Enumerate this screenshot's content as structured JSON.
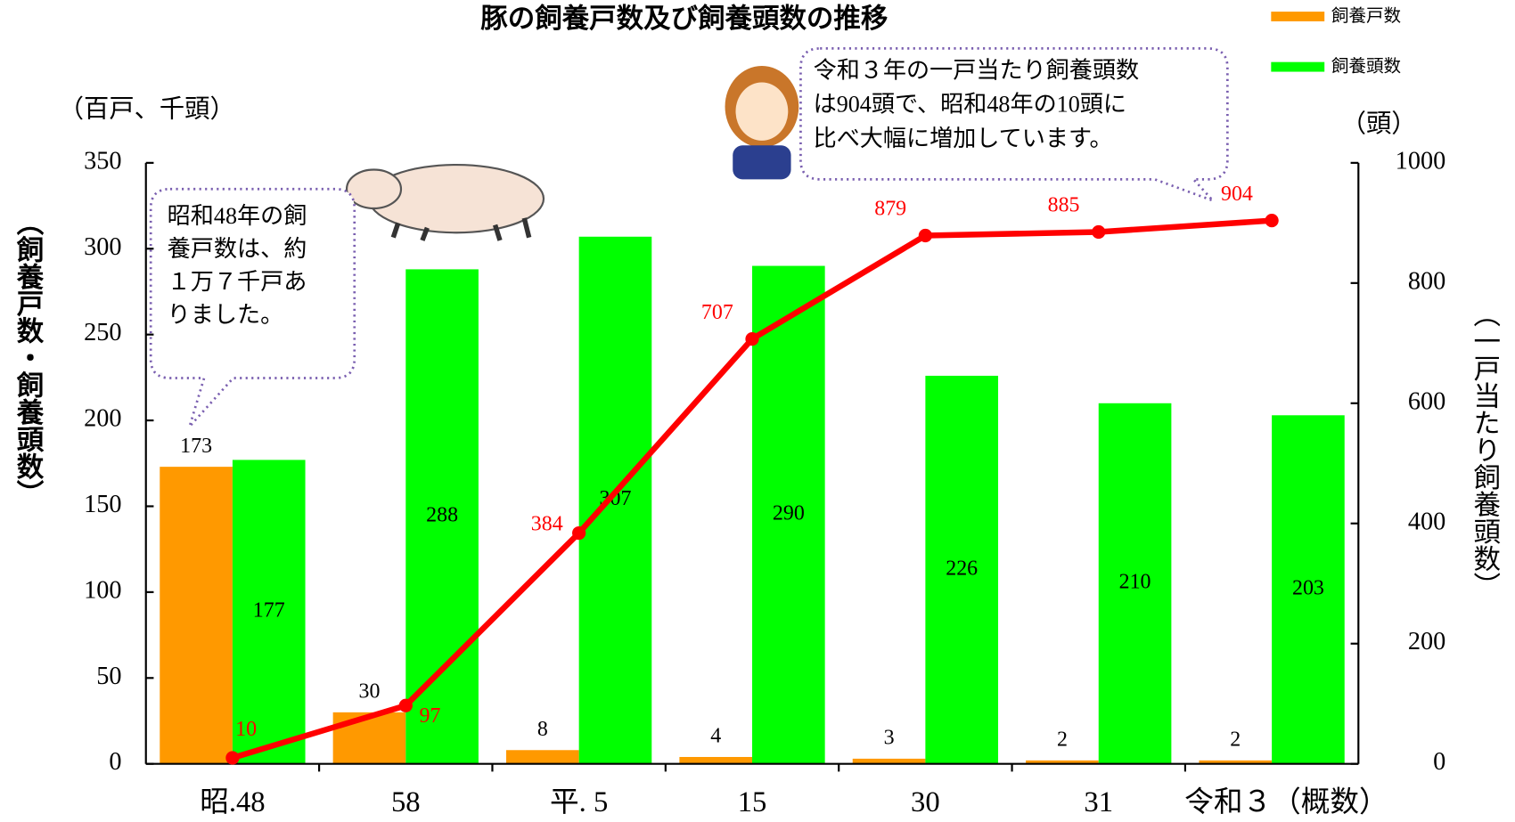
{
  "chart_data": {
    "type": "bar-line",
    "title": "豚の飼養戸数及び飼養頭数の推移",
    "categories": [
      "昭.48",
      "58",
      "平. 5",
      "15",
      "30",
      "31",
      "令和３（概数）"
    ],
    "series": [
      {
        "name": "飼養戸数",
        "color": "#ff9900",
        "values": [
          173,
          30,
          8,
          4,
          3,
          2,
          2
        ]
      },
      {
        "name": "飼養頭数",
        "color": "#00ff00",
        "values": [
          177,
          288,
          307,
          290,
          226,
          210,
          203
        ]
      },
      {
        "color": "#ff0000",
        "axis": "y2",
        "values": [
          10,
          97,
          384,
          707,
          879,
          885,
          904
        ]
      }
    ],
    "ylim": [
      0,
      350
    ],
    "yticks": [
      0,
      50,
      100,
      150,
      200,
      250,
      300,
      350
    ],
    "y2lim": [
      0,
      1000
    ],
    "y2ticks": [
      0,
      200,
      400,
      600,
      800,
      1000
    ],
    "y_unit": "（百戸、千頭）",
    "y2_unit": "（頭）",
    "ylabel": "（飼養戸数・飼養頭数）",
    "y2label": "（一戸当たり飼養頭数）",
    "annotations": [
      {
        "lines": [
          "昭和48年の飼",
          "養戸数は、約",
          "１万７千戸あ",
          "りました。"
        ]
      },
      {
        "lines": [
          "令和３年の一戸当たり飼養頭数",
          "は904頭で、昭和48年の10頭に",
          "比べ大幅に増加しています。"
        ]
      }
    ]
  }
}
